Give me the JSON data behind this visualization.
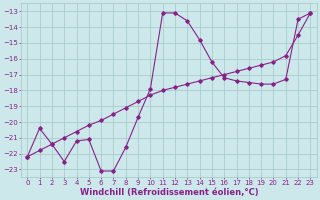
{
  "xlabel": "Windchill (Refroidissement éolien,°C)",
  "background_color": "#cce8ea",
  "grid_color": "#aacccc",
  "line_color": "#882288",
  "xlim": [
    -0.5,
    23.5
  ],
  "ylim": [
    -23.5,
    -12.5
  ],
  "xticks": [
    0,
    1,
    2,
    3,
    4,
    5,
    6,
    7,
    8,
    9,
    10,
    11,
    12,
    13,
    14,
    15,
    16,
    17,
    18,
    19,
    20,
    21,
    22,
    23
  ],
  "yticks": [
    -23,
    -22,
    -21,
    -20,
    -19,
    -18,
    -17,
    -16,
    -15,
    -14,
    -13
  ],
  "curvy_x": [
    0,
    1,
    2,
    3,
    4,
    5,
    6,
    7,
    8,
    9,
    10,
    11,
    12,
    13,
    14,
    15,
    16,
    17,
    18,
    19,
    20,
    21,
    22,
    23
  ],
  "curvy_y": [
    -22.2,
    -20.4,
    -21.4,
    -22.5,
    -21.2,
    -21.1,
    -23.1,
    -23.1,
    -21.6,
    -19.7,
    -17.9,
    -13.1,
    -13.1,
    -13.6,
    -14.8,
    -16.2,
    -17.2,
    -17.4,
    -17.5,
    -17.6,
    -17.6,
    -17.3,
    -13.5,
    -13.1
  ],
  "straight_x": [
    0,
    1,
    2,
    3,
    4,
    5,
    6,
    7,
    8,
    9,
    10,
    11,
    12,
    13,
    14,
    15,
    16,
    17,
    18,
    19,
    20,
    21,
    22,
    23
  ],
  "straight_y": [
    -22.2,
    -21.8,
    -21.4,
    -21.0,
    -20.6,
    -20.2,
    -19.9,
    -19.5,
    -19.1,
    -18.7,
    -18.3,
    -18.0,
    -17.8,
    -17.6,
    -17.4,
    -17.2,
    -17.0,
    -16.8,
    -16.6,
    -16.4,
    -16.2,
    -15.8,
    -14.5,
    -13.1
  ],
  "font_color": "#882288",
  "tick_fontsize": 5.0,
  "label_fontsize": 6.0
}
